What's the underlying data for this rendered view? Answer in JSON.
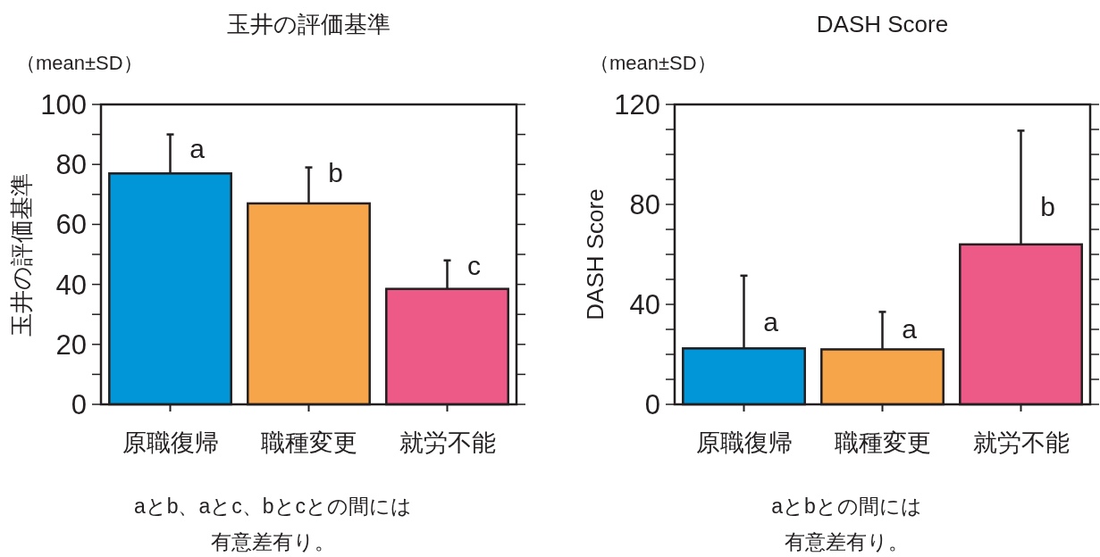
{
  "chart_data": [
    {
      "type": "bar",
      "title": "玉井の評価基準",
      "subtitle": "（mean±SD）",
      "ylabel": "玉井の評価基準",
      "categories": [
        "原職復帰",
        "職種変更",
        "就労不能"
      ],
      "values": [
        77,
        67,
        38.5
      ],
      "colors": [
        "#0096d8",
        "#f7a54a",
        "#ee5a88"
      ],
      "errors": [
        [
          77,
          90
        ],
        [
          67,
          79
        ],
        [
          38.5,
          48
        ]
      ],
      "ylim": [
        0,
        100
      ],
      "yticks": [
        0,
        {
          "value": 10,
          "label": null
        },
        20,
        {
          "value": 30,
          "label": null
        },
        40,
        {
          "value": 50,
          "label": null
        },
        60,
        {
          "value": 70,
          "label": null
        },
        80,
        {
          "value": 90,
          "label": null
        },
        100
      ],
      "annotations": [
        {
          "text": "a",
          "x": "原職復帰",
          "y": 85
        },
        {
          "text": "b",
          "x": "職種変更",
          "y": 77
        },
        {
          "text": "c",
          "x": "就労不能",
          "y": 46
        },
        "aとb、aとc、bとcとの間には",
        "有意差有り。"
      ]
    },
    {
      "type": "bar",
      "title": "DASH Score",
      "subtitle": "（mean±SD）",
      "ylabel": "DASH Score",
      "categories": [
        "原職復帰",
        "職種変更",
        "就労不能"
      ],
      "values": [
        22.4,
        22,
        64
      ],
      "colors": [
        "#0096d8",
        "#f7a54a",
        "#ee5a88"
      ],
      "errors": [
        [
          22.4,
          51.5
        ],
        [
          22,
          37
        ],
        [
          64,
          109.5
        ]
      ],
      "ylim": [
        0,
        120
      ],
      "yticks": [
        0,
        {
          "value": 10,
          "label": null
        },
        {
          "value": 20,
          "label": null
        },
        {
          "value": 30,
          "label": null
        },
        40,
        {
          "value": 50,
          "label": null
        },
        {
          "value": 60,
          "label": null
        },
        {
          "value": 70,
          "label": null
        },
        80,
        {
          "value": 90,
          "label": null
        },
        {
          "value": 100,
          "label": null
        },
        {
          "value": 110,
          "label": null
        },
        120
      ],
      "annotations": [
        {
          "text": "a",
          "x": "原職復帰",
          "y": 33
        },
        {
          "text": "a",
          "x": "職種変更",
          "y": 30
        },
        {
          "text": "b",
          "x": "就労不能",
          "y": 79
        },
        "aとbとの間には",
        "有意差有り。"
      ]
    }
  ]
}
